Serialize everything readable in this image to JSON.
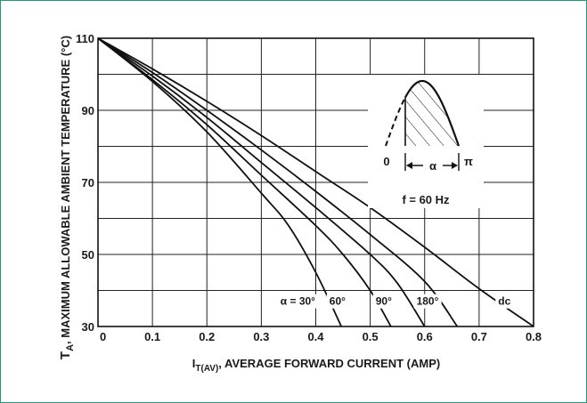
{
  "chart_data": {
    "type": "line",
    "title": "",
    "xlabel_prefix": "I",
    "xlabel_sub": "T(AV)",
    "xlabel_rest": ", AVERAGE FORWARD CURRENT (AMP)",
    "ylabel_prefix": "T",
    "ylabel_sub": "A",
    "ylabel_rest": ", MAXIMUM ALLOWABLE AMBIENT TEMPERATURE (°C)",
    "xlim": [
      0,
      0.8
    ],
    "ylim": [
      30,
      110
    ],
    "x_ticks": [
      "0",
      "0.1",
      "0.2",
      "0.3",
      "0.4",
      "0.5",
      "0.6",
      "0.7",
      "0.8"
    ],
    "y_ticks": [
      "30",
      "50",
      "70",
      "90",
      "110"
    ],
    "grid": true,
    "series": [
      {
        "name": "α = 30°",
        "points": [
          [
            0,
            110
          ],
          [
            0.1,
            98
          ],
          [
            0.2,
            84
          ],
          [
            0.3,
            67
          ],
          [
            0.35,
            58
          ],
          [
            0.4,
            45
          ],
          [
            0.447,
            30
          ]
        ]
      },
      {
        "name": "60°",
        "points": [
          [
            0,
            110
          ],
          [
            0.1,
            98.5
          ],
          [
            0.2,
            86
          ],
          [
            0.3,
            72
          ],
          [
            0.4,
            58
          ],
          [
            0.45,
            50
          ],
          [
            0.5,
            40
          ],
          [
            0.538,
            30
          ]
        ]
      },
      {
        "name": "90°",
        "points": [
          [
            0,
            110
          ],
          [
            0.1,
            99.5
          ],
          [
            0.2,
            88
          ],
          [
            0.3,
            75.5
          ],
          [
            0.4,
            63
          ],
          [
            0.5,
            50
          ],
          [
            0.55,
            42
          ],
          [
            0.6,
            30
          ]
        ]
      },
      {
        "name": "180°",
        "points": [
          [
            0,
            110
          ],
          [
            0.1,
            100.5
          ],
          [
            0.2,
            90
          ],
          [
            0.3,
            79
          ],
          [
            0.4,
            67.5
          ],
          [
            0.5,
            55.5
          ],
          [
            0.6,
            42.5
          ],
          [
            0.66,
            30
          ]
        ]
      },
      {
        "name": "dc",
        "points": [
          [
            0,
            110
          ],
          [
            0.1,
            101.5
          ],
          [
            0.2,
            92.5
          ],
          [
            0.3,
            83
          ],
          [
            0.4,
            73
          ],
          [
            0.5,
            63
          ],
          [
            0.6,
            52
          ],
          [
            0.7,
            40.5
          ],
          [
            0.8,
            30
          ]
        ]
      }
    ],
    "inset": {
      "label_zero": "0",
      "label_alpha": "α",
      "label_pi": "π",
      "label_freq": "f = 60 Hz"
    }
  }
}
